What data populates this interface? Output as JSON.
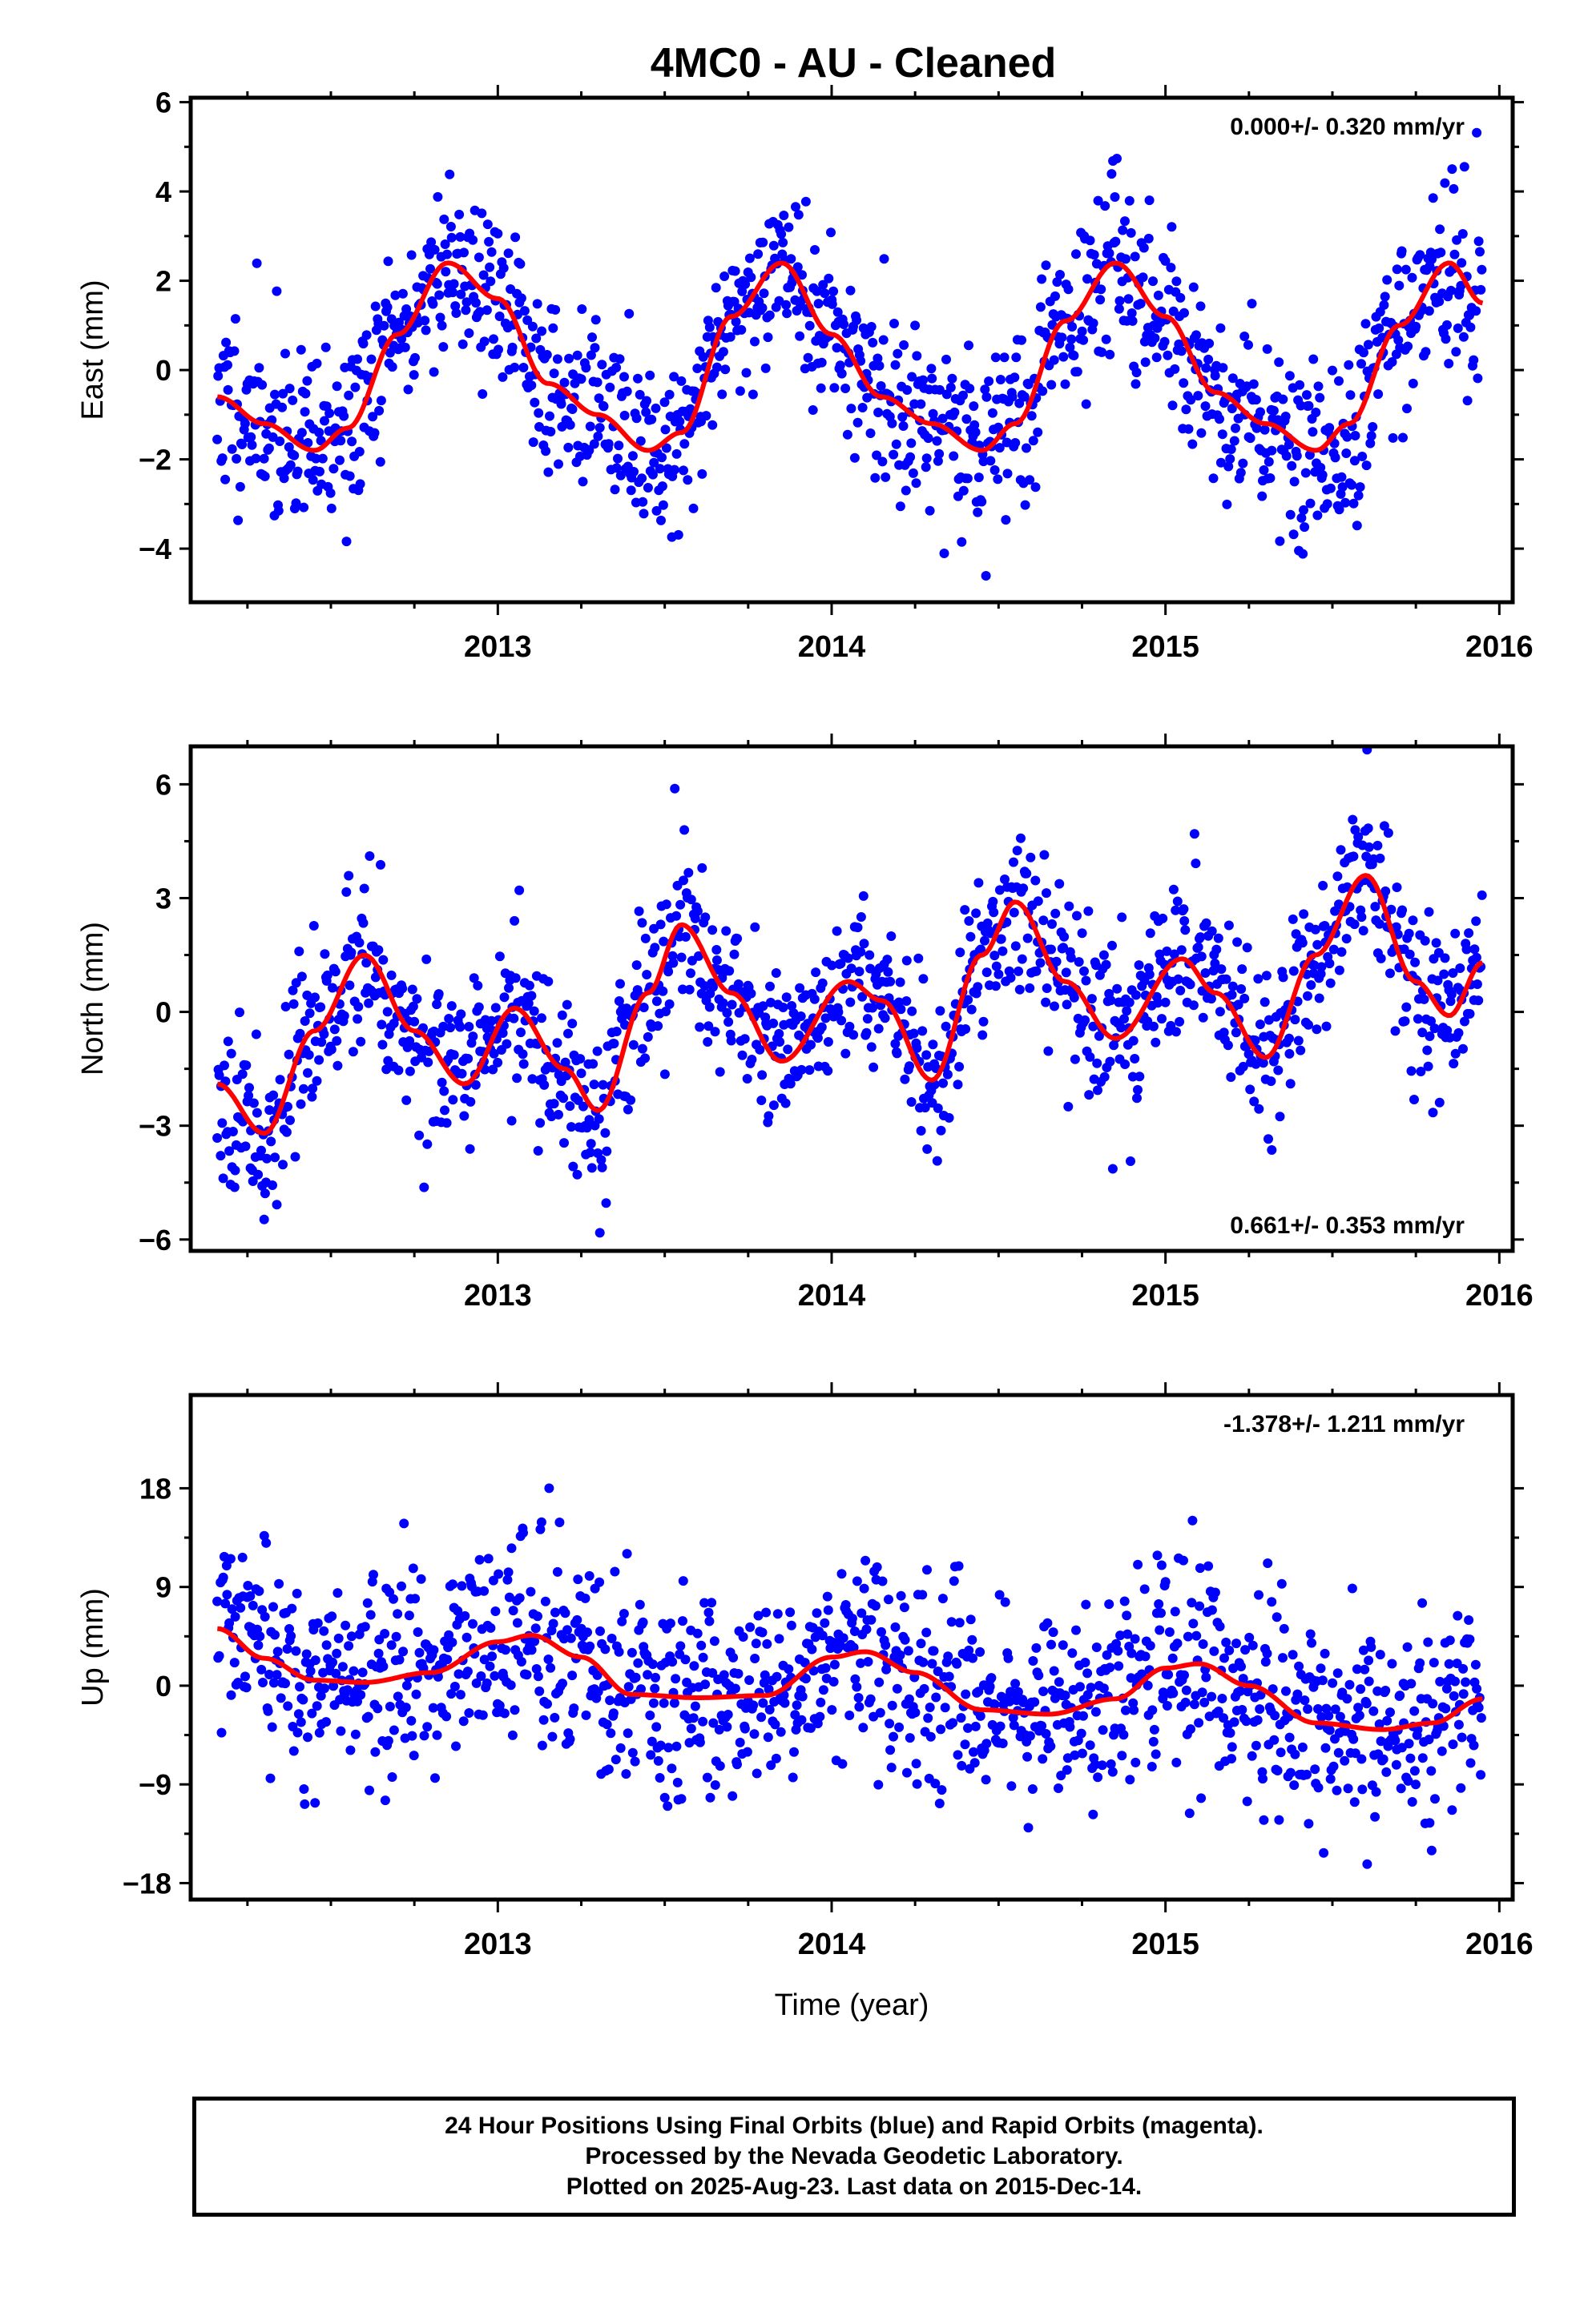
{
  "colors": {
    "points": "#0000ff",
    "fit": "#ff0000",
    "frame": "#000000"
  },
  "chart_data": [
    {
      "type": "scatter",
      "title": "4MC0  - AU - Cleaned",
      "ylabel": "East (mm)",
      "xlabel": "",
      "xlim": [
        2012.08,
        2016.04
      ],
      "ylim": [
        -5.2,
        6.1
      ],
      "xticks": [
        2013,
        2014,
        2015,
        2016
      ],
      "xtick_labels": [
        "2013",
        "2014",
        "2015",
        "2016"
      ],
      "yticks": [
        -4,
        -2,
        0,
        2,
        4,
        6
      ],
      "ytick_labels": [
        "−4",
        "−2",
        "0",
        "2",
        "4",
        "6"
      ],
      "rate_label": "0.000+/- 0.320 mm/yr",
      "rate_position": "top-right",
      "series": [
        {
          "role": "points",
          "x_start": 2012.16,
          "x_end": 2015.95,
          "seed": 11,
          "fit_offset": -0.4,
          "fit_trend": 0.0,
          "fit_annual": 2.0,
          "fit_annual_phase": 2.6,
          "fit_semi": 0.3,
          "fit_semi_phase": 0.5,
          "scatter_sd": 1.0
        },
        {
          "role": "fit",
          "x": [
            2012.16,
            2012.3,
            2012.45,
            2012.55,
            2012.7,
            2012.85,
            2013.0,
            2013.15,
            2013.3,
            2013.45,
            2013.55,
            2013.7,
            2013.85,
            2014.0,
            2014.15,
            2014.3,
            2014.45,
            2014.55,
            2014.7,
            2014.85,
            2015.0,
            2015.15,
            2015.3,
            2015.45,
            2015.55,
            2015.7,
            2015.85,
            2015.95
          ],
          "y": [
            -0.6,
            -1.2,
            -1.8,
            -1.3,
            0.8,
            2.4,
            1.6,
            -0.3,
            -1.0,
            -1.8,
            -1.4,
            1.2,
            2.4,
            0.8,
            -0.6,
            -1.2,
            -1.8,
            -1.2,
            1.1,
            2.4,
            1.2,
            -0.5,
            -1.2,
            -1.8,
            -1.2,
            1.0,
            2.4,
            1.5
          ]
        }
      ]
    },
    {
      "type": "scatter",
      "ylabel": "North (mm)",
      "xlabel": "",
      "xlim": [
        2012.08,
        2016.04
      ],
      "ylim": [
        -6.3,
        7.0
      ],
      "xticks": [
        2013,
        2014,
        2015,
        2016
      ],
      "xtick_labels": [
        "2013",
        "2014",
        "2015",
        "2016"
      ],
      "yticks": [
        -6,
        -3,
        0,
        3,
        6
      ],
      "ytick_labels": [
        "−6",
        "−3",
        "0",
        "3",
        "6"
      ],
      "rate_label": "0.661+/- 0.353 mm/yr",
      "rate_position": "bottom-right",
      "series": [
        {
          "role": "points",
          "x_start": 2012.16,
          "x_end": 2015.95,
          "seed": 23,
          "scatter_sd": 1.1
        },
        {
          "role": "fit",
          "x": [
            2012.16,
            2012.3,
            2012.45,
            2012.6,
            2012.75,
            2012.9,
            2013.05,
            2013.2,
            2013.3,
            2013.45,
            2013.55,
            2013.7,
            2013.85,
            2014.05,
            2014.15,
            2014.3,
            2014.45,
            2014.55,
            2014.7,
            2014.85,
            2015.05,
            2015.15,
            2015.3,
            2015.45,
            2015.6,
            2015.75,
            2015.85,
            2015.95
          ],
          "y": [
            -1.9,
            -3.2,
            -0.5,
            1.5,
            -0.5,
            -1.9,
            0.1,
            -1.5,
            -2.6,
            0.5,
            2.3,
            0.5,
            -1.3,
            0.8,
            0.3,
            -1.8,
            1.5,
            2.9,
            0.8,
            -0.7,
            1.4,
            0.5,
            -1.2,
            1.5,
            3.6,
            0.8,
            -0.1,
            1.3
          ]
        }
      ]
    },
    {
      "type": "scatter",
      "ylabel": "Up (mm)",
      "xlabel": "Time (year)",
      "xlim": [
        2012.08,
        2016.04
      ],
      "ylim": [
        -19.5,
        26.5
      ],
      "xticks": [
        2013,
        2014,
        2015,
        2016
      ],
      "xtick_labels": [
        "2013",
        "2014",
        "2015",
        "2016"
      ],
      "yticks": [
        -18,
        -9,
        0,
        9,
        18
      ],
      "ytick_labels": [
        "−18",
        "−9",
        "0",
        "9",
        "18"
      ],
      "rate_label": "-1.378+/- 1.211 mm/yr",
      "rate_position": "top-right",
      "series": [
        {
          "role": "points",
          "x_start": 2012.16,
          "x_end": 2015.95,
          "seed": 37,
          "scatter_sd": 4.6
        },
        {
          "role": "fit",
          "x": [
            2012.16,
            2012.3,
            2012.45,
            2012.6,
            2012.8,
            2013.0,
            2013.1,
            2013.25,
            2013.4,
            2013.6,
            2013.8,
            2014.0,
            2014.1,
            2014.25,
            2014.45,
            2014.65,
            2014.85,
            2015.0,
            2015.1,
            2015.25,
            2015.45,
            2015.65,
            2015.8,
            2015.95
          ],
          "y": [
            5.2,
            2.5,
            0.5,
            0.3,
            1.2,
            4.0,
            4.6,
            2.6,
            -0.8,
            -1.1,
            -0.9,
            2.6,
            3.1,
            1.2,
            -2.2,
            -2.6,
            -1.2,
            1.6,
            2.0,
            0.0,
            -3.4,
            -4.0,
            -3.4,
            -1.2
          ]
        }
      ]
    }
  ],
  "caption": {
    "line1": "24 Hour Positions Using Final Orbits (blue) and Rapid Orbits (magenta).",
    "line2": "Processed by the Nevada Geodetic Laboratory.",
    "line3": "Plotted on 2025-Aug-23. Last data on 2015-Dec-14."
  }
}
